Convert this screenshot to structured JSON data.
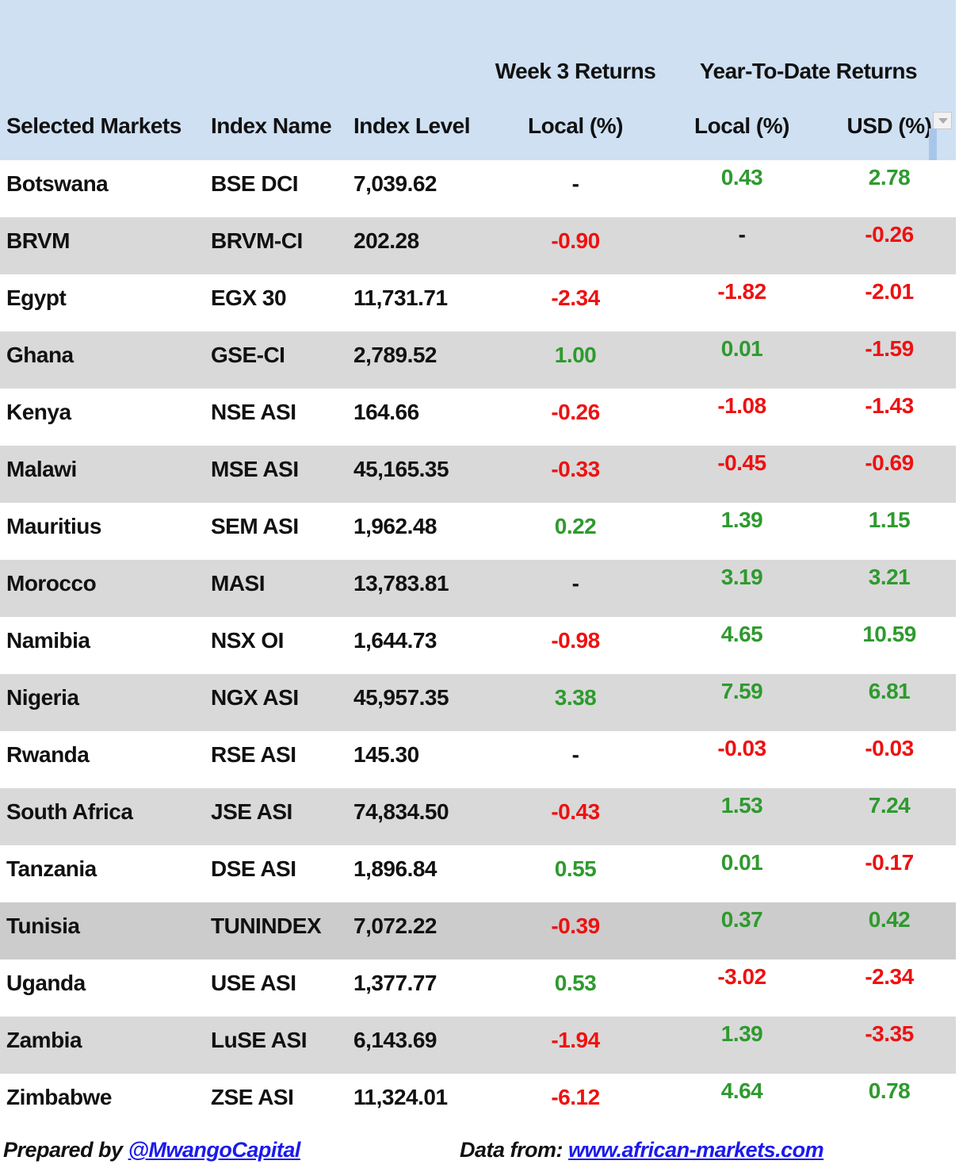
{
  "header": {
    "group_week": "Week 3 Returns",
    "group_ytd": "Year-To-Date Returns",
    "col_market": "Selected Markets",
    "col_index": "Index Name",
    "col_level": "Index Level",
    "col_week_local": "Local (%)",
    "col_ytd_local": "Local (%)",
    "col_ytd_usd": "USD (%)"
  },
  "rows": [
    {
      "market": "Botswana",
      "index": "BSE DCI",
      "level": "7,039.62",
      "week": "-",
      "ytd_local": "0.43",
      "ytd_usd": "2.78"
    },
    {
      "market": "BRVM",
      "index": "BRVM-CI",
      "level": "202.28",
      "week": "-0.90",
      "ytd_local": "-",
      "ytd_usd": "-0.26"
    },
    {
      "market": "Egypt",
      "index": "EGX 30",
      "level": "11,731.71",
      "week": "-2.34",
      "ytd_local": "-1.82",
      "ytd_usd": "-2.01"
    },
    {
      "market": "Ghana",
      "index": "GSE-CI",
      "level": "2,789.52",
      "week": "1.00",
      "ytd_local": "0.01",
      "ytd_usd": "-1.59"
    },
    {
      "market": "Kenya",
      "index": "NSE ASI",
      "level": "164.66",
      "week": "-0.26",
      "ytd_local": "-1.08",
      "ytd_usd": "-1.43"
    },
    {
      "market": "Malawi",
      "index": "MSE ASI",
      "level": "45,165.35",
      "week": "-0.33",
      "ytd_local": "-0.45",
      "ytd_usd": "-0.69"
    },
    {
      "market": "Mauritius",
      "index": "SEM ASI",
      "level": "1,962.48",
      "week": "0.22",
      "ytd_local": "1.39",
      "ytd_usd": "1.15"
    },
    {
      "market": "Morocco",
      "index": "MASI",
      "level": "13,783.81",
      "week": "-",
      "ytd_local": "3.19",
      "ytd_usd": "3.21"
    },
    {
      "market": "Namibia",
      "index": "NSX OI",
      "level": "1,644.73",
      "week": "-0.98",
      "ytd_local": "4.65",
      "ytd_usd": "10.59"
    },
    {
      "market": "Nigeria",
      "index": "NGX ASI",
      "level": "45,957.35",
      "week": "3.38",
      "ytd_local": "7.59",
      "ytd_usd": "6.81"
    },
    {
      "market": "Rwanda",
      "index": "RSE ASI",
      "level": "145.30",
      "week": "-",
      "ytd_local": "-0.03",
      "ytd_usd": "-0.03"
    },
    {
      "market": "South Africa",
      "index": "JSE ASI",
      "level": "74,834.50",
      "week": "-0.43",
      "ytd_local": "1.53",
      "ytd_usd": "7.24"
    },
    {
      "market": "Tanzania",
      "index": "DSE ASI",
      "level": "1,896.84",
      "week": "0.55",
      "ytd_local": "0.01",
      "ytd_usd": "-0.17"
    },
    {
      "market": "Tunisia",
      "index": "TUNINDEX",
      "level": "7,072.22",
      "week": "-0.39",
      "ytd_local": "0.37",
      "ytd_usd": "0.42"
    },
    {
      "market": "Uganda",
      "index": "USE ASI",
      "level": "1,377.77",
      "week": "0.53",
      "ytd_local": "-3.02",
      "ytd_usd": "-2.34"
    },
    {
      "market": "Zambia",
      "index": "LuSE ASI",
      "level": "6,143.69",
      "week": "-1.94",
      "ytd_local": "1.39",
      "ytd_usd": "-3.35"
    },
    {
      "market": "Zimbabwe",
      "index": "ZSE ASI",
      "level": "11,324.01",
      "week": "-6.12",
      "ytd_local": "4.64",
      "ytd_usd": "0.78"
    }
  ],
  "footer": {
    "prepared_label": "Prepared by",
    "prepared_link": "@MwangoCapital",
    "data_label": "Data from:",
    "data_link": "www.african-markets.com"
  },
  "colors": {
    "header_bg": "#cfe0f3",
    "positive": "#2e9a2e",
    "negative": "#ee1111",
    "stripe": "#d9d9d9",
    "link": "#1a1aee"
  }
}
